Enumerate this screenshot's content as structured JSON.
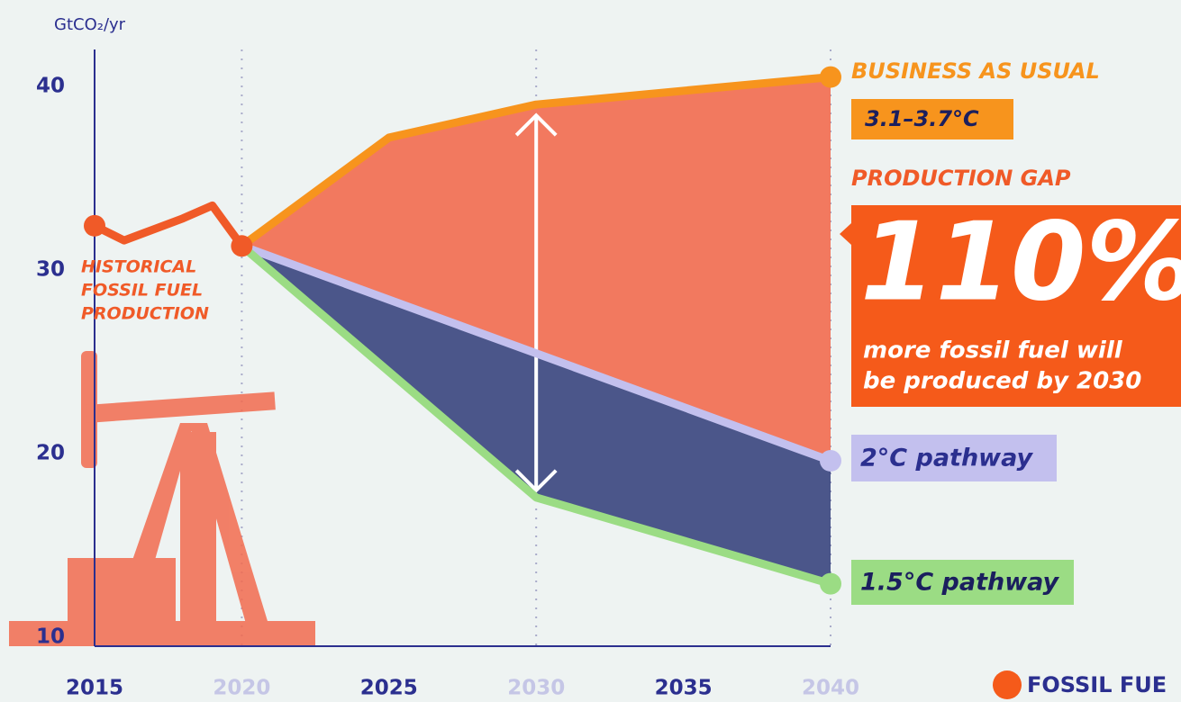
{
  "chart_data": {
    "type": "line",
    "y_unit": "GtCO₂/yr",
    "xlim": [
      2015,
      2040
    ],
    "xticks": [
      2015,
      2020,
      2025,
      2030,
      2035,
      2040
    ],
    "ylim": [
      9.5,
      42
    ],
    "yticks": [
      10,
      20,
      30,
      40
    ],
    "series": [
      {
        "label_lines": [
          "HISTORICAL",
          "FOSSIL FUEL",
          "PRODUCTION"
        ],
        "color": "#f05a28",
        "x": [
          2015,
          2016,
          2017,
          2018,
          2019,
          2020
        ],
        "values": [
          32.4,
          31.6,
          32.2,
          32.8,
          33.5,
          31.3
        ]
      },
      {
        "name": "BUSINESS AS USUAL",
        "color": "#f7941d",
        "x": [
          2020,
          2025,
          2030,
          2040
        ],
        "values": [
          31.3,
          37.2,
          39.0,
          40.5
        ]
      },
      {
        "name": "2°C pathway",
        "color": "#c3c0ee",
        "x": [
          2020,
          2040
        ],
        "values": [
          31.3,
          19.6
        ]
      },
      {
        "name": "1.5°C pathway",
        "color": "#9bdc84",
        "x": [
          2020,
          2030,
          2040
        ],
        "values": [
          31.3,
          17.6,
          12.9
        ]
      }
    ],
    "bau_range": "3.1–3.7°C",
    "gap_title": "PRODUCTION GAP",
    "gap_value": "110%",
    "gap_text_lines": [
      "more fossil fuel will",
      "be produced by 2030"
    ],
    "brand": "FOSSIL FUE"
  }
}
